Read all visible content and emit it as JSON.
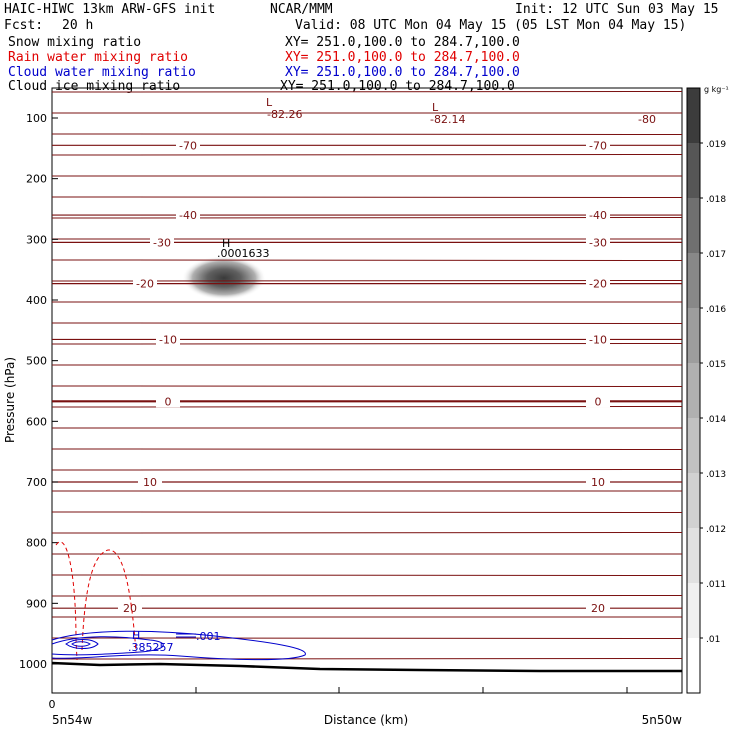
{
  "header": {
    "title": "HAIC-HIWC 13km ARW-GFS init",
    "org": "NCAR/MMM",
    "init": "Init: 12 UTC Sun 03 May 15",
    "fcst_label": "Fcst:",
    "fcst_value": "20 h",
    "valid": "Valid: 08 UTC Mon 04 May 15 (05 LST Mon 04 May 15)",
    "fields": [
      {
        "name": "Snow mixing ratio",
        "xy": "XY= 251.0,100.0 to 284.7,100.0",
        "color": "#000000"
      },
      {
        "name": "Rain water mixing ratio",
        "xy": "XY= 251.0,100.0 to 284.7,100.0",
        "color": "#e00000"
      },
      {
        "name": "Cloud water mixing ratio",
        "xy": "XY= 251.0,100.0 to 284.7,100.0",
        "color": "#0000cc"
      },
      {
        "name": "Cloud ice mixing ratio",
        "xy": "XY= 251.0,100.0 to 284.7,100.0",
        "color": "#000000"
      }
    ]
  },
  "chart_data": {
    "type": "cross-section contour",
    "ylabel": "Pressure (hPa)",
    "xlabel": "Distance (km)",
    "y_ticks": [
      100,
      200,
      300,
      400,
      500,
      600,
      700,
      800,
      900,
      1000
    ],
    "x_tick_label": "0",
    "x_left_label": "5n54w",
    "x_right_label": "5n50w",
    "colorbar": {
      "units": "g kg⁻¹",
      "ticks": [
        ".01",
        ".011",
        ".012",
        ".013",
        ".014",
        ".015",
        ".016",
        ".017",
        ".018",
        ".019"
      ],
      "colors": [
        "#ffffff",
        "#f0f0f0",
        "#e1e1e1",
        "#d1d1d1",
        "#c1c1c1",
        "#b0b0b0",
        "#9d9d9d",
        "#888888",
        "#707070",
        "#565656",
        "#3c3c3c"
      ]
    },
    "temperature_contours": [
      {
        "value": -70,
        "label": "-70",
        "p": 145
      },
      {
        "value": -40,
        "label": "-40",
        "p": 260
      },
      {
        "value": -30,
        "label": "-30",
        "p": 305
      },
      {
        "value": -20,
        "label": "-20",
        "p": 373
      },
      {
        "value": -10,
        "label": "-10",
        "p": 465
      },
      {
        "value": 0,
        "label": "0",
        "p": 567,
        "bold": true
      },
      {
        "value": 10,
        "label": "10",
        "p": 700
      },
      {
        "value": 20,
        "label": "20",
        "p": 908
      }
    ],
    "extrema": [
      {
        "type": "L",
        "value": "-82.26"
      },
      {
        "type": "L",
        "value": "-82.14"
      },
      {
        "type": "H",
        "value": ".0001633"
      },
      {
        "type": "H",
        "value": ".385257"
      }
    ],
    "right_labels": [
      "-80"
    ],
    "cloud_water_contour_label": ".001",
    "line_color": "#7a1010"
  }
}
